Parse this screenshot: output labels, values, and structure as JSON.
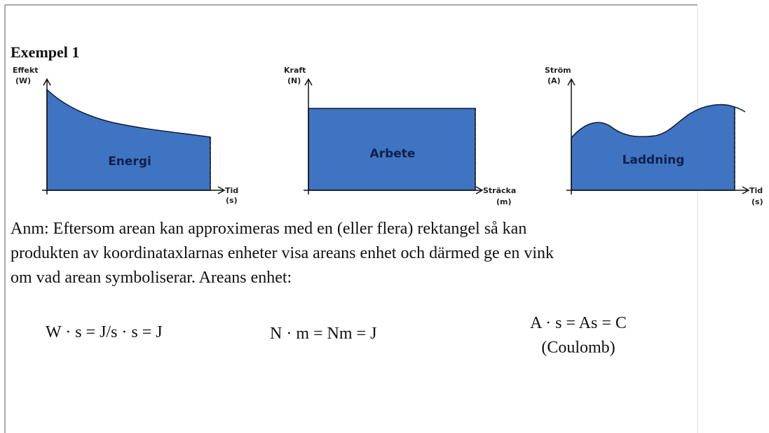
{
  "heading": "Exempel 1",
  "diagrams": [
    {
      "y_axis": {
        "name": "Effekt",
        "unit": "(W)"
      },
      "x_axis": {
        "name": "Tid",
        "unit": "(s)"
      },
      "area_label": "Energi"
    },
    {
      "y_axis": {
        "name": "Kraft",
        "unit": "(N)"
      },
      "x_axis": {
        "name": "Sträcka",
        "unit": "(m)"
      },
      "area_label": "Arbete"
    },
    {
      "y_axis": {
        "name": "Ström",
        "unit": "(A)"
      },
      "x_axis": {
        "name": "Tid",
        "unit": "(s)"
      },
      "area_label": "Laddning"
    }
  ],
  "note": [
    "Anm: Eftersom arean kan approximeras med en (eller flera) rektangel så kan",
    "produkten av koordinataxlarnas enheter visa areans enhet och därmed ge en vink",
    "om vad arean symboliserar. Areans enhet:"
  ],
  "formulas": [
    {
      "text": "W · s = J/s · s = J"
    },
    {
      "text": "N · m = Nm = J"
    },
    {
      "text": "A · s = As = C",
      "note": "(Coulomb)"
    }
  ]
}
